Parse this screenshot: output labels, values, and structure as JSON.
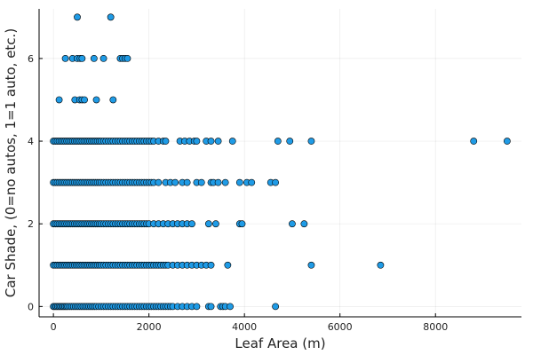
{
  "chart_data": {
    "type": "scatter",
    "title": "",
    "xlabel": "Leaf Area (m)",
    "ylabel": "Car Shade, (0=no autos, 1=1 auto, etc.)",
    "xlim": [
      -300,
      9800
    ],
    "ylim": [
      -0.25,
      7.2
    ],
    "xticks": [
      0,
      2000,
      4000,
      6000,
      8000
    ],
    "yticks": [
      0,
      2,
      4,
      6
    ],
    "grid": true,
    "legend": "none",
    "marker_color": "#1f9be6",
    "marker_edge": "#000000",
    "series": [
      {
        "y_levels": [
          {
            "y": 0,
            "x": [
              0,
              30,
              60,
              90,
              120,
              150,
              180,
              210,
              240,
              270,
              300,
              340,
              380,
              420,
              460,
              500,
              540,
              580,
              620,
              660,
              700,
              740,
              780,
              820,
              860,
              900,
              950,
              1000,
              1050,
              1100,
              1150,
              1200,
              1250,
              1300,
              1350,
              1400,
              1450,
              1500,
              1550,
              1600,
              1650,
              1700,
              1750,
              1800,
              1850,
              1900,
              1950,
              2000,
              2050,
              2100,
              2150,
              2200,
              2250,
              2300,
              2350,
              2400,
              2450,
              2500,
              2600,
              2700,
              2800,
              2900,
              3000,
              3250,
              3300,
              3500,
              3550,
              3600,
              3700,
              4650
            ]
          },
          {
            "y": 1,
            "x": [
              0,
              40,
              80,
              120,
              160,
              200,
              240,
              280,
              320,
              360,
              400,
              440,
              480,
              520,
              560,
              600,
              640,
              680,
              720,
              760,
              800,
              840,
              880,
              920,
              960,
              1000,
              1050,
              1100,
              1150,
              1200,
              1250,
              1300,
              1350,
              1400,
              1450,
              1500,
              1550,
              1600,
              1650,
              1700,
              1750,
              1800,
              1850,
              1900,
              1950,
              2000,
              2050,
              2100,
              2150,
              2200,
              2250,
              2300,
              2350,
              2400,
              2500,
              2600,
              2700,
              2800,
              2900,
              3000,
              3100,
              3200,
              3300,
              3650,
              5400,
              6850
            ]
          },
          {
            "y": 2,
            "x": [
              0,
              40,
              80,
              120,
              160,
              200,
              240,
              280,
              320,
              360,
              400,
              440,
              480,
              520,
              560,
              600,
              640,
              680,
              720,
              760,
              800,
              840,
              880,
              920,
              960,
              1000,
              1050,
              1100,
              1150,
              1200,
              1250,
              1300,
              1350,
              1400,
              1450,
              1500,
              1550,
              1600,
              1650,
              1700,
              1750,
              1800,
              1850,
              1900,
              1950,
              2000,
              2100,
              2200,
              2300,
              2400,
              2500,
              2600,
              2700,
              2800,
              2900,
              3250,
              3400,
              3900,
              3950,
              5000,
              5250
            ]
          },
          {
            "y": 3,
            "x": [
              0,
              40,
              80,
              120,
              160,
              200,
              240,
              280,
              320,
              360,
              400,
              440,
              480,
              520,
              560,
              600,
              640,
              680,
              720,
              760,
              800,
              840,
              880,
              920,
              960,
              1000,
              1050,
              1100,
              1150,
              1200,
              1250,
              1300,
              1350,
              1400,
              1450,
              1500,
              1550,
              1600,
              1650,
              1700,
              1750,
              1800,
              1850,
              1900,
              1950,
              2000,
              2050,
              2100,
              2200,
              2350,
              2450,
              2550,
              2700,
              2800,
              3000,
              3100,
              3300,
              3350,
              3450,
              3600,
              3900,
              4050,
              4150,
              4550,
              4650
            ]
          },
          {
            "y": 4,
            "x": [
              0,
              40,
              80,
              120,
              160,
              200,
              240,
              280,
              320,
              360,
              400,
              440,
              480,
              520,
              560,
              600,
              640,
              680,
              720,
              760,
              800,
              840,
              880,
              920,
              960,
              1000,
              1050,
              1100,
              1150,
              1200,
              1250,
              1300,
              1350,
              1400,
              1450,
              1500,
              1550,
              1600,
              1650,
              1700,
              1750,
              1800,
              1850,
              1900,
              1950,
              2000,
              2050,
              2100,
              2200,
              2300,
              2350,
              2650,
              2750,
              2850,
              2950,
              3000,
              3200,
              3300,
              3450,
              3750,
              4700,
              4950,
              5400,
              8800,
              9500
            ]
          },
          {
            "y": 5,
            "x": [
              120,
              450,
              550,
              600,
              650,
              900,
              1250
            ]
          },
          {
            "y": 6,
            "x": [
              250,
              400,
              500,
              560,
              600,
              850,
              1050,
              1400,
              1450,
              1500,
              1550
            ]
          },
          {
            "y": 7,
            "x": [
              500,
              1200
            ]
          }
        ]
      }
    ]
  }
}
